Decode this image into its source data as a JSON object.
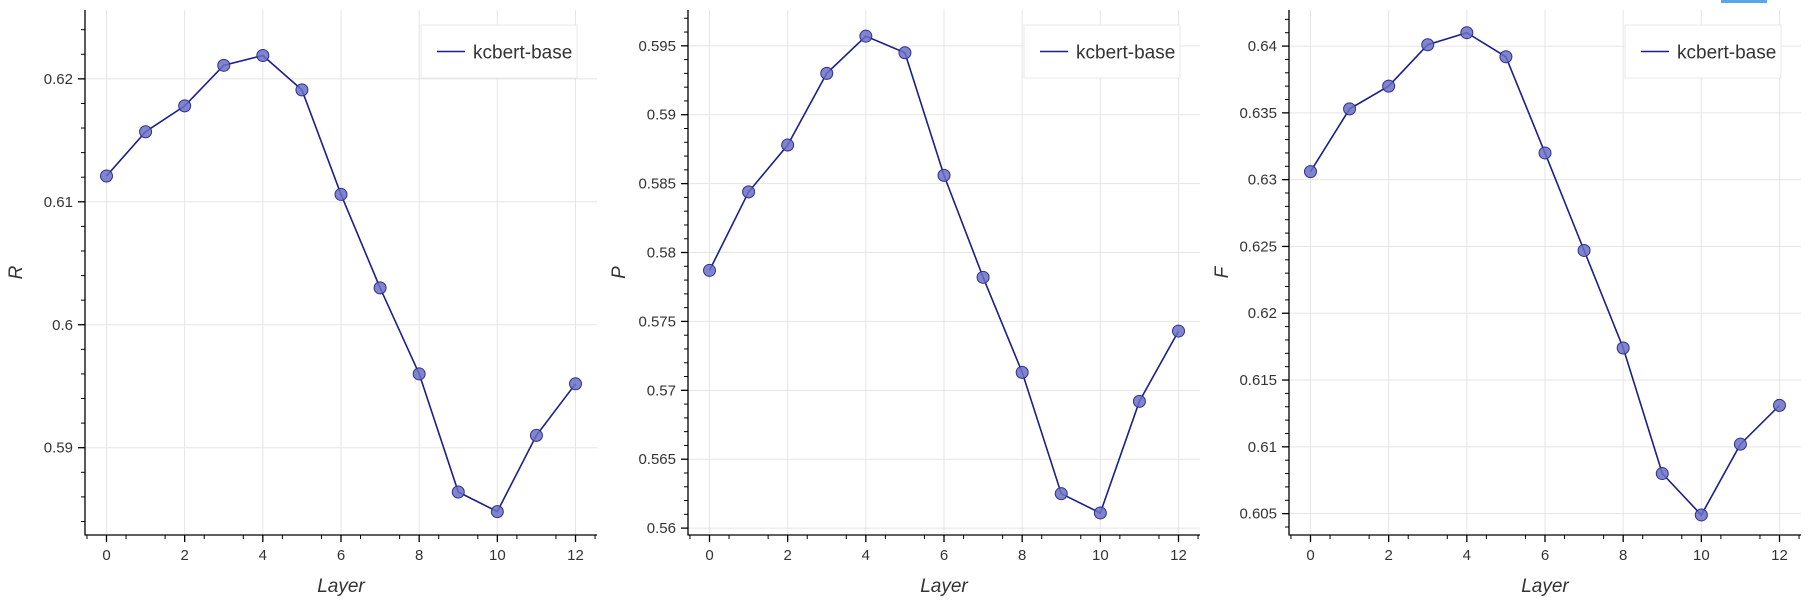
{
  "chart_data": [
    {
      "type": "line",
      "xlabel": "Layer",
      "ylabel": "R",
      "x": [
        0,
        1,
        2,
        3,
        4,
        5,
        6,
        7,
        8,
        9,
        10,
        11,
        12
      ],
      "series": [
        {
          "name": "kcbert-base",
          "values": [
            0.6121,
            0.6157,
            0.6178,
            0.6211,
            0.6219,
            0.6191,
            0.6106,
            0.603,
            0.596,
            0.5864,
            0.5848,
            0.591,
            0.5952
          ]
        }
      ],
      "xlim": [
        -0.55,
        12.55
      ],
      "ylim": [
        0.5829,
        0.6256
      ],
      "xticks": [
        0,
        2,
        4,
        6,
        8,
        10,
        12
      ],
      "yticks": [
        0.59,
        0.6,
        0.61,
        0.62
      ],
      "ytick_labels": [
        "0.59",
        "0.6",
        "0.61",
        "0.62"
      ],
      "grid": true,
      "legend_position": "top-right"
    },
    {
      "type": "line",
      "xlabel": "Layer",
      "ylabel": "P",
      "x": [
        0,
        1,
        2,
        3,
        4,
        5,
        6,
        7,
        8,
        9,
        10,
        11,
        12
      ],
      "series": [
        {
          "name": "kcbert-base",
          "values": [
            0.5787,
            0.5844,
            0.5878,
            0.593,
            0.5957,
            0.5945,
            0.5856,
            0.5782,
            0.5713,
            0.5625,
            0.5611,
            0.5692,
            0.5743
          ]
        }
      ],
      "xlim": [
        -0.55,
        12.55
      ],
      "ylim": [
        0.5595,
        0.5976
      ],
      "xticks": [
        0,
        2,
        4,
        6,
        8,
        10,
        12
      ],
      "yticks": [
        0.56,
        0.565,
        0.57,
        0.575,
        0.58,
        0.585,
        0.59,
        0.595
      ],
      "ytick_labels": [
        "0.56",
        "0.565",
        "0.57",
        "0.575",
        "0.58",
        "0.585",
        "0.59",
        "0.595"
      ],
      "grid": true,
      "legend_position": "top-right"
    },
    {
      "type": "line",
      "xlabel": "Layer",
      "ylabel": "F",
      "x": [
        0,
        1,
        2,
        3,
        4,
        5,
        6,
        7,
        8,
        9,
        10,
        11,
        12
      ],
      "series": [
        {
          "name": "kcbert-base",
          "values": [
            0.6306,
            0.6353,
            0.637,
            0.6401,
            0.641,
            0.6392,
            0.632,
            0.6247,
            0.6174,
            0.608,
            0.6049,
            0.6102,
            0.6131
          ]
        }
      ],
      "xlim": [
        -0.55,
        12.55
      ],
      "ylim": [
        0.6034,
        0.6427
      ],
      "xticks": [
        0,
        2,
        4,
        6,
        8,
        10,
        12
      ],
      "yticks": [
        0.605,
        0.61,
        0.615,
        0.62,
        0.625,
        0.63,
        0.635,
        0.64
      ],
      "ytick_labels": [
        "0.605",
        "0.61",
        "0.615",
        "0.62",
        "0.625",
        "0.63",
        "0.635",
        "0.64"
      ],
      "grid": true,
      "legend_position": "top-right"
    }
  ],
  "colors": {
    "line": "#1a1f8a",
    "marker_fill": "#6a70c4",
    "marker_stroke": "#2b2f8f",
    "grid": "#e5e5e5",
    "legend_border": "#e8e8e8",
    "toolbar_accent": "#5aa6e6"
  }
}
